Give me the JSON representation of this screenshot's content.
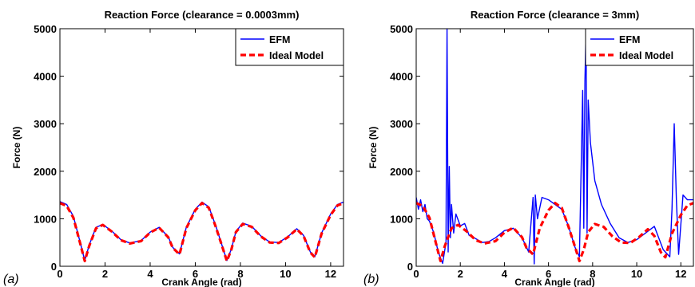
{
  "chart_data": [
    {
      "type": "line",
      "panel_label": "(a)",
      "title": "Reaction Force (clearance = 0.0003mm)",
      "xlabel": "Crank Angle (rad)",
      "ylabel": "Force (N)",
      "xlim": [
        0,
        12.57
      ],
      "ylim": [
        0,
        5000
      ],
      "xticks": [
        0,
        2,
        4,
        6,
        8,
        10,
        12
      ],
      "yticks": [
        0,
        1000,
        2000,
        3000,
        4000,
        5000
      ],
      "legend_position": "top-right",
      "grid": false,
      "series": [
        {
          "name": "EFM",
          "color": "#0000ff",
          "style": "solid",
          "x": [
            0,
            0.3,
            0.6,
            0.9,
            1.1,
            1.3,
            1.6,
            1.9,
            2.3,
            2.7,
            3.1,
            3.6,
            4.0,
            4.4,
            4.8,
            5.0,
            5.3,
            5.6,
            6.0,
            6.3,
            6.6,
            6.9,
            7.2,
            7.4,
            7.6,
            7.8,
            8.1,
            8.5,
            8.9,
            9.3,
            9.7,
            10.1,
            10.5,
            10.8,
            11.1,
            11.3,
            11.6,
            12.0,
            12.3,
            12.57
          ],
          "y": [
            1360,
            1300,
            1050,
            500,
            120,
            450,
            820,
            880,
            740,
            560,
            490,
            540,
            720,
            820,
            620,
            400,
            260,
            820,
            1200,
            1350,
            1250,
            860,
            420,
            120,
            360,
            730,
            910,
            840,
            640,
            510,
            500,
            620,
            790,
            650,
            300,
            200,
            700,
            1100,
            1300,
            1350
          ]
        },
        {
          "name": "Ideal Model",
          "color": "#ff0000",
          "style": "dashed",
          "x": [
            0,
            0.3,
            0.6,
            0.9,
            1.1,
            1.3,
            1.6,
            1.9,
            2.3,
            2.7,
            3.1,
            3.6,
            4.0,
            4.4,
            4.8,
            5.0,
            5.3,
            5.6,
            6.0,
            6.3,
            6.6,
            6.9,
            7.2,
            7.4,
            7.6,
            7.8,
            8.1,
            8.5,
            8.9,
            9.3,
            9.7,
            10.1,
            10.5,
            10.8,
            11.1,
            11.3,
            11.6,
            12.0,
            12.3,
            12.57
          ],
          "y": [
            1330,
            1270,
            1020,
            480,
            110,
            430,
            800,
            870,
            730,
            550,
            480,
            530,
            710,
            810,
            610,
            390,
            250,
            800,
            1180,
            1330,
            1230,
            840,
            410,
            110,
            350,
            720,
            890,
            830,
            630,
            500,
            490,
            610,
            780,
            640,
            290,
            190,
            690,
            1080,
            1280,
            1330
          ]
        }
      ]
    },
    {
      "type": "line",
      "panel_label": "(b)",
      "title": "Reaction Force (clearance = 3mm)",
      "xlabel": "Crank Angle (rad)",
      "ylabel": "Force (N)",
      "xlim": [
        0,
        12.57
      ],
      "ylim": [
        0,
        5000
      ],
      "xticks": [
        0,
        2,
        4,
        6,
        8,
        10,
        12
      ],
      "yticks": [
        0,
        1000,
        2000,
        3000,
        4000,
        5000
      ],
      "legend_position": "top-right",
      "grid": false,
      "series": [
        {
          "name": "EFM",
          "color": "#0000ff",
          "style": "solid",
          "x": [
            0,
            0.1,
            0.2,
            0.3,
            0.4,
            0.5,
            0.6,
            0.8,
            1.0,
            1.2,
            1.35,
            1.4,
            1.45,
            1.5,
            1.55,
            1.6,
            1.7,
            1.8,
            2.0,
            2.2,
            2.4,
            2.7,
            3.0,
            3.3,
            3.6,
            4.0,
            4.4,
            4.8,
            5.1,
            5.3,
            5.35,
            5.4,
            5.5,
            5.7,
            6.0,
            6.3,
            6.6,
            6.9,
            7.2,
            7.4,
            7.55,
            7.6,
            7.65,
            7.7,
            7.75,
            7.8,
            7.9,
            8.1,
            8.4,
            8.8,
            9.2,
            9.6,
            10.0,
            10.4,
            10.8,
            11.2,
            11.5,
            11.6,
            11.7,
            11.8,
            11.9,
            12.1,
            12.3,
            12.57
          ],
          "y": [
            1450,
            1200,
            1400,
            1150,
            1300,
            1000,
            950,
            700,
            300,
            60,
            500,
            5000,
            300,
            2100,
            600,
            1300,
            700,
            1100,
            850,
            900,
            650,
            580,
            500,
            520,
            600,
            750,
            800,
            600,
            300,
            1450,
            50,
            1500,
            1000,
            1450,
            1400,
            1300,
            1200,
            850,
            400,
            200,
            3700,
            800,
            3900,
            5000,
            700,
            3500,
            2600,
            1800,
            1300,
            900,
            600,
            500,
            560,
            700,
            840,
            350,
            200,
            1200,
            3000,
            1400,
            250,
            1500,
            1400,
            1400
          ]
        },
        {
          "name": "Ideal Model",
          "color": "#ff0000",
          "style": "dashed",
          "x": [
            0,
            0.3,
            0.6,
            0.9,
            1.1,
            1.3,
            1.6,
            1.9,
            2.3,
            2.7,
            3.1,
            3.6,
            4.0,
            4.4,
            4.8,
            5.0,
            5.3,
            5.6,
            6.0,
            6.3,
            6.6,
            6.9,
            7.2,
            7.4,
            7.6,
            7.8,
            8.1,
            8.5,
            8.9,
            9.3,
            9.7,
            10.1,
            10.5,
            10.8,
            11.1,
            11.3,
            11.6,
            12.0,
            12.3,
            12.57
          ],
          "y": [
            1330,
            1270,
            1020,
            480,
            110,
            430,
            800,
            870,
            730,
            550,
            480,
            530,
            710,
            810,
            610,
            390,
            250,
            800,
            1180,
            1330,
            1230,
            840,
            410,
            110,
            350,
            720,
            890,
            830,
            630,
            500,
            490,
            610,
            780,
            640,
            290,
            190,
            690,
            1080,
            1280,
            1330
          ]
        }
      ]
    }
  ]
}
